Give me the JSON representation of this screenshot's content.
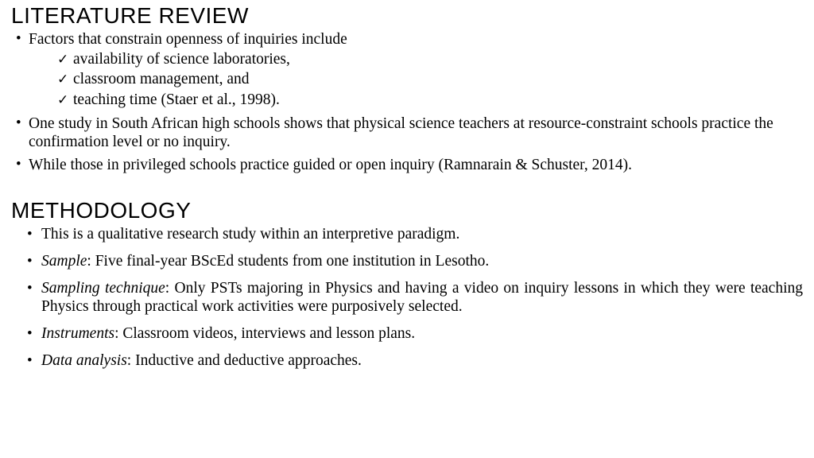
{
  "litreview": {
    "title": "LITERATURE REVIEW",
    "b1_lead": "Factors that constrain openness of inquiries include",
    "sub1": "availability of science laboratories,",
    "sub2": "classroom management, and",
    "sub3": "teaching time (Staer et al., 1998).",
    "b2": "One study in South African high schools shows that physical science teachers at resource-constraint schools practice the confirmation level or no inquiry.",
    "b3": "While those in privileged schools practice guided or open inquiry (Ramnarain & Schuster, 2014)."
  },
  "methodology": {
    "title": "METHODOLOGY",
    "m1": "This is a qualitative research study within an interpretive paradigm.",
    "m2_label": "Sample",
    "m2_rest": ": Five final-year BScEd students from one institution in Lesotho.",
    "m3_label": "Sampling technique",
    "m3_rest": ": Only PSTs majoring in Physics and having a video on inquiry lessons in which they were teaching Physics through practical work activities were purposively selected.",
    "m4_label": "Instruments",
    "m4_rest": ": Classroom videos, interviews and lesson plans.",
    "m5_label": "Data analysis",
    "m5_rest": ": Inductive and deductive approaches."
  }
}
